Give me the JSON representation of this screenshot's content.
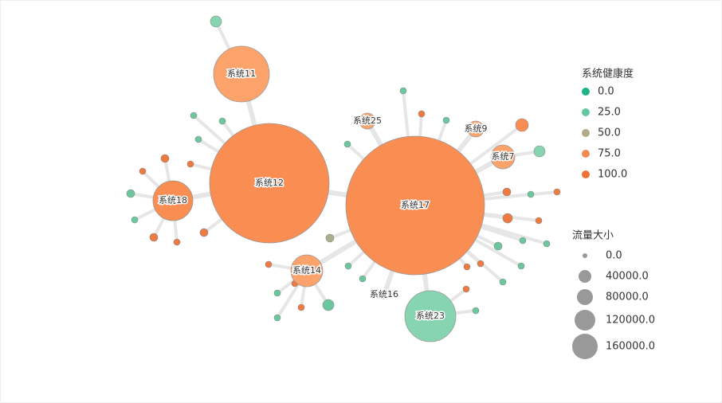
{
  "nodes": [
    {
      "label": "系统11"
    },
    {
      "label": "系统12"
    },
    {
      "label": "系统17"
    },
    {
      "label": "系统18"
    },
    {
      "label": "系统14"
    },
    {
      "label": "系统23"
    },
    {
      "label": "系统25"
    },
    {
      "label": "系统9"
    },
    {
      "label": "系统7"
    },
    {
      "label": "系统16"
    }
  ],
  "legend_health": {
    "title": "系统健康度",
    "items": [
      "0.0",
      "25.0",
      "50.0",
      "75.0",
      "100.0"
    ]
  },
  "legend_traffic": {
    "title": "流量大小",
    "items": [
      "0.0",
      "40000.0",
      "80000.0",
      "120000.0",
      "160000.0"
    ]
  }
}
